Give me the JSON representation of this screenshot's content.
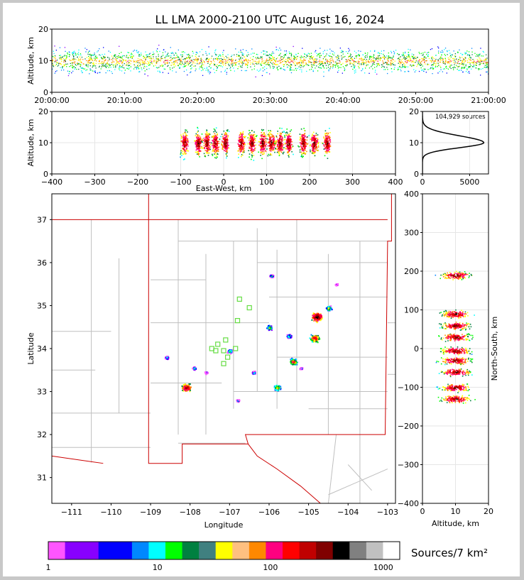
{
  "title": "LL LMA 2000-2100 UTC August 16, 2024",
  "source_count_label": "104,929 sources",
  "colorbar_label": "Sources/7 km²",
  "colors": {
    "colorbar": [
      "#ff55ff",
      "#8800ff",
      "#8800ff",
      "#0000ff",
      "#0000ff",
      "#0088ff",
      "#00ffff",
      "#00ff00",
      "#008040",
      "#408080",
      "#ffff00",
      "#ffc080",
      "#ff8800",
      "#ff0080",
      "#ff0000",
      "#c00000",
      "#800000",
      "#000000",
      "#808080",
      "#c0c0c0",
      "#ffffff"
    ],
    "border": "#cc0000",
    "county": "#bfbfbf",
    "station": "#66dd44"
  },
  "chart_data": [
    {
      "id": "time-height",
      "type": "heatmap",
      "xlabel": "",
      "ylabel": "Altitude, km",
      "ylim": [
        0,
        20
      ],
      "xticks": [
        "20:00:00",
        "20:10:00",
        "20:20:00",
        "20:30:00",
        "20:40:00",
        "20:50:00",
        "21:00:00"
      ],
      "yticks": [
        0,
        10,
        20
      ]
    },
    {
      "id": "ew-height",
      "type": "heatmap",
      "xlabel": "East-West, km",
      "ylabel": "Altitude, km",
      "xlim": [
        -400,
        400
      ],
      "ylim": [
        0,
        20
      ],
      "xticks": [
        -400,
        -300,
        -200,
        -100,
        0,
        100,
        200,
        300,
        400
      ],
      "yticks": [
        0,
        10,
        20
      ],
      "clusters_x": [
        -92,
        -60,
        -40,
        -20,
        3,
        40,
        65,
        90,
        110,
        130,
        150,
        185,
        210,
        240
      ]
    },
    {
      "id": "altitude-histogram",
      "type": "line",
      "xticks": [
        0,
        5000
      ],
      "yticks": [
        0,
        10,
        20
      ],
      "xlim": [
        0,
        7000
      ],
      "ylim": [
        0,
        20
      ],
      "peak": {
        "altitude_km": 10,
        "count": 6500
      }
    },
    {
      "id": "plan-view",
      "type": "heatmap",
      "xlabel": "Longitude",
      "ylabel": "Latitude",
      "xlim": [
        -111.5,
        -102.8
      ],
      "ylim": [
        30.4,
        37.6
      ],
      "xticks": [
        -111,
        -110,
        -109,
        -108,
        -107,
        -106,
        -105,
        -104,
        -103
      ],
      "yticks": [
        31,
        32,
        33,
        34,
        35,
        36,
        37
      ],
      "storm_cells": [
        {
          "lon": -108.1,
          "lat": 33.1,
          "size": 1.0
        },
        {
          "lon": -105.4,
          "lat": 33.7,
          "size": 0.8
        },
        {
          "lon": -104.8,
          "lat": 34.75,
          "size": 1.1
        },
        {
          "lon": -104.85,
          "lat": 34.25,
          "size": 0.9
        },
        {
          "lon": -104.5,
          "lat": 34.95,
          "size": 0.6
        },
        {
          "lon": -106.0,
          "lat": 34.5,
          "size": 0.6
        },
        {
          "lon": -105.8,
          "lat": 33.1,
          "size": 0.7
        },
        {
          "lon": -105.95,
          "lat": 35.7,
          "size": 0.4
        },
        {
          "lon": -108.6,
          "lat": 33.8,
          "size": 0.4
        },
        {
          "lon": -107.9,
          "lat": 33.55,
          "size": 0.4
        },
        {
          "lon": -107.6,
          "lat": 33.45,
          "size": 0.3
        },
        {
          "lon": -107.0,
          "lat": 33.95,
          "size": 0.5
        },
        {
          "lon": -106.4,
          "lat": 33.45,
          "size": 0.4
        },
        {
          "lon": -106.8,
          "lat": 32.8,
          "size": 0.3
        },
        {
          "lon": -105.5,
          "lat": 34.3,
          "size": 0.5
        },
        {
          "lon": -104.3,
          "lat": 35.5,
          "size": 0.25
        },
        {
          "lon": -105.2,
          "lat": 33.55,
          "size": 0.3
        }
      ],
      "stations": [
        {
          "lon": -107.1,
          "lat": 34.2
        },
        {
          "lon": -107.3,
          "lat": 34.1
        },
        {
          "lon": -107.45,
          "lat": 34.0
        },
        {
          "lon": -107.15,
          "lat": 33.95
        },
        {
          "lon": -107.05,
          "lat": 33.8
        },
        {
          "lon": -107.15,
          "lat": 33.65
        },
        {
          "lon": -106.85,
          "lat": 34.0
        },
        {
          "lon": -106.8,
          "lat": 34.65
        },
        {
          "lon": -106.75,
          "lat": 35.15
        },
        {
          "lon": -106.5,
          "lat": 34.95
        },
        {
          "lon": -107.35,
          "lat": 33.95
        }
      ]
    },
    {
      "id": "height-ns",
      "type": "heatmap",
      "xlabel": "Altitude, km",
      "ylabel": "North-South, km",
      "xlim": [
        0,
        20
      ],
      "ylim": [
        -400,
        400
      ],
      "xticks": [
        0,
        10,
        20
      ],
      "yticks": [
        -400,
        -300,
        -200,
        -100,
        0,
        100,
        200,
        300,
        400
      ],
      "clusters_y": [
        190,
        90,
        60,
        30,
        -5,
        -30,
        -60,
        -100,
        -130
      ]
    },
    {
      "id": "colorbar",
      "type": "table",
      "ticks": [
        "1",
        "10",
        "100",
        "1000"
      ]
    }
  ]
}
